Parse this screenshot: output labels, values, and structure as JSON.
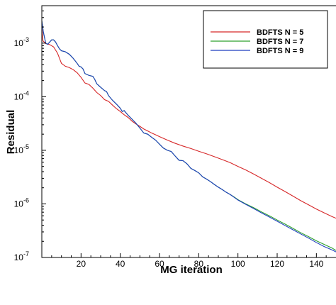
{
  "chart_data": {
    "type": "line",
    "title": "",
    "xlabel": "MG iteration",
    "ylabel": "Residual",
    "xlim": [
      0,
      150
    ],
    "ylim": [
      1e-07,
      0.005
    ],
    "yscale": "log",
    "x_ticks": [
      20,
      40,
      60,
      80,
      100,
      120,
      140
    ],
    "x_tick_labels": [
      "20",
      "40",
      "60",
      "80",
      "100",
      "120",
      "140"
    ],
    "y_ticks": [
      {
        "value": 1e-07,
        "base": "10",
        "exp": "-7"
      },
      {
        "value": 1e-06,
        "base": "10",
        "exp": "-6"
      },
      {
        "value": 1e-05,
        "base": "10",
        "exp": "-5"
      },
      {
        "value": 0.0001,
        "base": "10",
        "exp": "-4"
      },
      {
        "value": 0.001,
        "base": "10",
        "exp": "-3"
      }
    ],
    "grid": false,
    "legend_position": "top-right",
    "series": [
      {
        "name": "BDFTS N = 5",
        "color": "#d62728",
        "points": [
          [
            0,
            0.0019
          ],
          [
            0.6,
            0.0011
          ],
          [
            2,
            0.00098
          ],
          [
            4,
            0.00094
          ],
          [
            6,
            0.00085
          ],
          [
            8,
            0.00065
          ],
          [
            10,
            0.00042
          ],
          [
            12,
            0.00037
          ],
          [
            14,
            0.00035
          ],
          [
            16,
            0.00032
          ],
          [
            18,
            0.00028
          ],
          [
            20,
            0.00023
          ],
          [
            22,
            0.00018
          ],
          [
            24,
            0.00017
          ],
          [
            26,
            0.000145
          ],
          [
            28,
            0.00012
          ],
          [
            30,
            0.000105
          ],
          [
            32,
            8.8e-05
          ],
          [
            34,
            8.2e-05
          ],
          [
            36,
            7e-05
          ],
          [
            38,
            6e-05
          ],
          [
            40,
            5.3e-05
          ],
          [
            42,
            4.6e-05
          ],
          [
            44,
            4.1e-05
          ],
          [
            46,
            3.5e-05
          ],
          [
            48,
            3.1e-05
          ],
          [
            50,
            2.8e-05
          ],
          [
            52,
            2.5e-05
          ],
          [
            54,
            2.3e-05
          ],
          [
            56,
            2.1e-05
          ],
          [
            58,
            1.95e-05
          ],
          [
            60,
            1.8e-05
          ],
          [
            64,
            1.55e-05
          ],
          [
            68,
            1.35e-05
          ],
          [
            72,
            1.2e-05
          ],
          [
            76,
            1.08e-05
          ],
          [
            80,
            9.6e-06
          ],
          [
            84,
            8.6e-06
          ],
          [
            88,
            7.6e-06
          ],
          [
            92,
            6.7e-06
          ],
          [
            96,
            5.9e-06
          ],
          [
            100,
            5e-06
          ],
          [
            104,
            4.3e-06
          ],
          [
            108,
            3.6e-06
          ],
          [
            112,
            3e-06
          ],
          [
            116,
            2.5e-06
          ],
          [
            120,
            2.05e-06
          ],
          [
            124,
            1.7e-06
          ],
          [
            128,
            1.4e-06
          ],
          [
            132,
            1.15e-06
          ],
          [
            136,
            9.6e-07
          ],
          [
            140,
            8e-07
          ],
          [
            144,
            6.8e-07
          ],
          [
            148,
            5.8e-07
          ],
          [
            150,
            5.4e-07
          ]
        ]
      },
      {
        "name": "BDFTS N = 7",
        "color": "#2ca02c",
        "points": [
          [
            0,
            0.0026
          ],
          [
            0.8,
            0.0016
          ],
          [
            2,
            0.001
          ],
          [
            3,
            0.00095
          ],
          [
            4,
            0.00105
          ],
          [
            5,
            0.00115
          ],
          [
            6,
            0.00115
          ],
          [
            7,
            0.00105
          ],
          [
            8,
            0.0009
          ],
          [
            9,
            0.00078
          ],
          [
            10,
            0.00072
          ],
          [
            12,
            0.00069
          ],
          [
            14,
            0.00062
          ],
          [
            16,
            0.00052
          ],
          [
            18,
            0.00042
          ],
          [
            19,
            0.00037
          ],
          [
            20,
            0.00036
          ],
          [
            21,
            0.00033
          ],
          [
            22,
            0.00027
          ],
          [
            24,
            0.00025
          ],
          [
            26,
            0.00024
          ],
          [
            27,
            0.00021
          ],
          [
            28,
            0.000175
          ],
          [
            30,
            0.00015
          ],
          [
            32,
            0.00013
          ],
          [
            33,
            0.000125
          ],
          [
            34,
            0.000105
          ],
          [
            36,
            8.6e-05
          ],
          [
            38,
            7.3e-05
          ],
          [
            40,
            6.1e-05
          ],
          [
            41,
            5.3e-05
          ],
          [
            42,
            5.5e-05
          ],
          [
            44,
            4.5e-05
          ],
          [
            46,
            3.8e-05
          ],
          [
            48,
            3.2e-05
          ],
          [
            50,
            2.6e-05
          ],
          [
            52,
            2.1e-05
          ],
          [
            54,
            2e-05
          ],
          [
            56,
            1.75e-05
          ],
          [
            58,
            1.55e-05
          ],
          [
            60,
            1.3e-05
          ],
          [
            62,
            1.1e-05
          ],
          [
            64,
            1e-05
          ],
          [
            66,
            9.5e-06
          ],
          [
            68,
            7.8e-06
          ],
          [
            70,
            6.5e-06
          ],
          [
            72,
            6.4e-06
          ],
          [
            74,
            5.6e-06
          ],
          [
            76,
            4.6e-06
          ],
          [
            78,
            4.2e-06
          ],
          [
            80,
            3.8e-06
          ],
          [
            82,
            3.2e-06
          ],
          [
            84,
            2.9e-06
          ],
          [
            86,
            2.6e-06
          ],
          [
            88,
            2.3e-06
          ],
          [
            90,
            2.05e-06
          ],
          [
            92,
            1.85e-06
          ],
          [
            94,
            1.65e-06
          ],
          [
            96,
            1.5e-06
          ],
          [
            98,
            1.35e-06
          ],
          [
            100,
            1.2e-06
          ],
          [
            104,
            1e-06
          ],
          [
            108,
            8.5e-07
          ],
          [
            112,
            7.1e-07
          ],
          [
            116,
            6e-07
          ],
          [
            120,
            5e-07
          ],
          [
            124,
            4.2e-07
          ],
          [
            128,
            3.5e-07
          ],
          [
            132,
            2.9e-07
          ],
          [
            136,
            2.45e-07
          ],
          [
            140,
            2.05e-07
          ],
          [
            144,
            1.75e-07
          ],
          [
            148,
            1.5e-07
          ],
          [
            150,
            1.35e-07
          ]
        ]
      },
      {
        "name": "BDFTS N = 9",
        "color": "#1f3fbf",
        "points": [
          [
            0,
            0.0026
          ],
          [
            0.8,
            0.0016
          ],
          [
            2,
            0.001
          ],
          [
            3,
            0.00095
          ],
          [
            4,
            0.00105
          ],
          [
            5,
            0.00115
          ],
          [
            6,
            0.00115
          ],
          [
            7,
            0.00105
          ],
          [
            8,
            0.0009
          ],
          [
            9,
            0.00078
          ],
          [
            10,
            0.00072
          ],
          [
            12,
            0.00069
          ],
          [
            14,
            0.00062
          ],
          [
            16,
            0.00052
          ],
          [
            18,
            0.00042
          ],
          [
            19,
            0.00037
          ],
          [
            20,
            0.00036
          ],
          [
            21,
            0.00033
          ],
          [
            22,
            0.00027
          ],
          [
            24,
            0.00025
          ],
          [
            26,
            0.00024
          ],
          [
            27,
            0.00021
          ],
          [
            28,
            0.000175
          ],
          [
            30,
            0.00015
          ],
          [
            32,
            0.00013
          ],
          [
            33,
            0.000125
          ],
          [
            34,
            0.000105
          ],
          [
            36,
            8.6e-05
          ],
          [
            38,
            7.3e-05
          ],
          [
            40,
            6.1e-05
          ],
          [
            41,
            5.3e-05
          ],
          [
            42,
            5.5e-05
          ],
          [
            44,
            4.5e-05
          ],
          [
            46,
            3.8e-05
          ],
          [
            48,
            3.2e-05
          ],
          [
            50,
            2.6e-05
          ],
          [
            52,
            2.1e-05
          ],
          [
            54,
            2e-05
          ],
          [
            56,
            1.75e-05
          ],
          [
            58,
            1.55e-05
          ],
          [
            60,
            1.3e-05
          ],
          [
            62,
            1.1e-05
          ],
          [
            64,
            1e-05
          ],
          [
            66,
            9.5e-06
          ],
          [
            68,
            7.8e-06
          ],
          [
            70,
            6.5e-06
          ],
          [
            72,
            6.4e-06
          ],
          [
            74,
            5.6e-06
          ],
          [
            76,
            4.6e-06
          ],
          [
            78,
            4.2e-06
          ],
          [
            80,
            3.8e-06
          ],
          [
            82,
            3.2e-06
          ],
          [
            84,
            2.9e-06
          ],
          [
            86,
            2.6e-06
          ],
          [
            88,
            2.3e-06
          ],
          [
            90,
            2.05e-06
          ],
          [
            92,
            1.85e-06
          ],
          [
            94,
            1.65e-06
          ],
          [
            96,
            1.5e-06
          ],
          [
            98,
            1.33e-06
          ],
          [
            100,
            1.18e-06
          ],
          [
            104,
            9.8e-07
          ],
          [
            108,
            8.2e-07
          ],
          [
            112,
            6.8e-07
          ],
          [
            116,
            5.7e-07
          ],
          [
            120,
            4.75e-07
          ],
          [
            124,
            3.95e-07
          ],
          [
            128,
            3.3e-07
          ],
          [
            132,
            2.75e-07
          ],
          [
            136,
            2.3e-07
          ],
          [
            140,
            1.9e-07
          ],
          [
            144,
            1.6e-07
          ],
          [
            148,
            1.38e-07
          ],
          [
            150,
            1.27e-07
          ]
        ]
      }
    ]
  }
}
